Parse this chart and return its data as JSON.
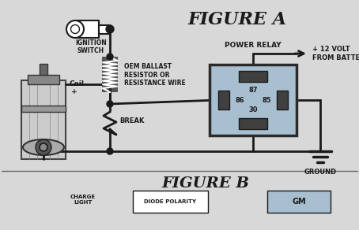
{
  "title_a": "FIGURE A",
  "title_b": "FIGURE B",
  "bg_color": "#d8d8d8",
  "line_color": "#1a1a1a",
  "relay_fill": "#a8bfd0",
  "relay_border": "#2a2a2a",
  "text_color": "#1a1a1a",
  "labels": {
    "ignition_switch": "IGNITION\nSWITCH",
    "oem_ballast": "OEM BALLAST\nRESISTOR OR\nRESISTANCE WIRE",
    "break_lbl": "BREAK",
    "power_relay": "POWER RELAY",
    "plus12volt": "+ 12 VOLT\nFROM BATTERY",
    "ground": "GROUND",
    "coil_plus": "Coil\n +",
    "relay_87": "87",
    "relay_86": "86",
    "relay_85": "85",
    "relay_30": "30",
    "charge_light": "CHARGE\nLIGHT",
    "diode_polarity": "DIODE POLARITY",
    "gm": "GM"
  }
}
